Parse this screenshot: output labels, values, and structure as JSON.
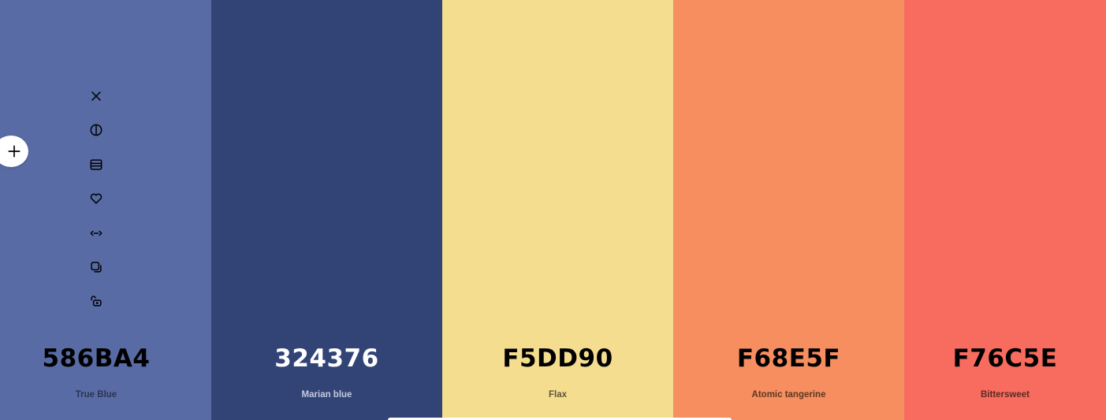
{
  "swatches": [
    {
      "hex": "586BA4",
      "name": "True Blue",
      "bg": "#586BA4",
      "hex_color": "#000000",
      "name_color": "#2b3350"
    },
    {
      "hex": "324376",
      "name": "Marian blue",
      "bg": "#324376",
      "hex_color": "#ffffff",
      "name_color": "#c4cae0"
    },
    {
      "hex": "F5DD90",
      "name": "Flax",
      "bg": "#F5DD90",
      "hex_color": "#000000",
      "name_color": "#5e5535"
    },
    {
      "hex": "F68E5F",
      "name": "Atomic tangerine",
      "bg": "#F68E5F",
      "hex_color": "#000000",
      "name_color": "#5a3624"
    },
    {
      "hex": "F76C5E",
      "name": "Bittersweet",
      "bg": "#F76C5E",
      "hex_color": "#000000",
      "name_color": "#5a2924"
    }
  ],
  "tools": [
    {
      "icon": "close-icon"
    },
    {
      "icon": "shades-icon"
    },
    {
      "icon": "view-details-icon"
    },
    {
      "icon": "heart-icon"
    },
    {
      "icon": "drag-arrows-icon"
    },
    {
      "icon": "copy-icon"
    },
    {
      "icon": "unlock-icon"
    }
  ],
  "add_button": {
    "icon": "plus-icon"
  }
}
